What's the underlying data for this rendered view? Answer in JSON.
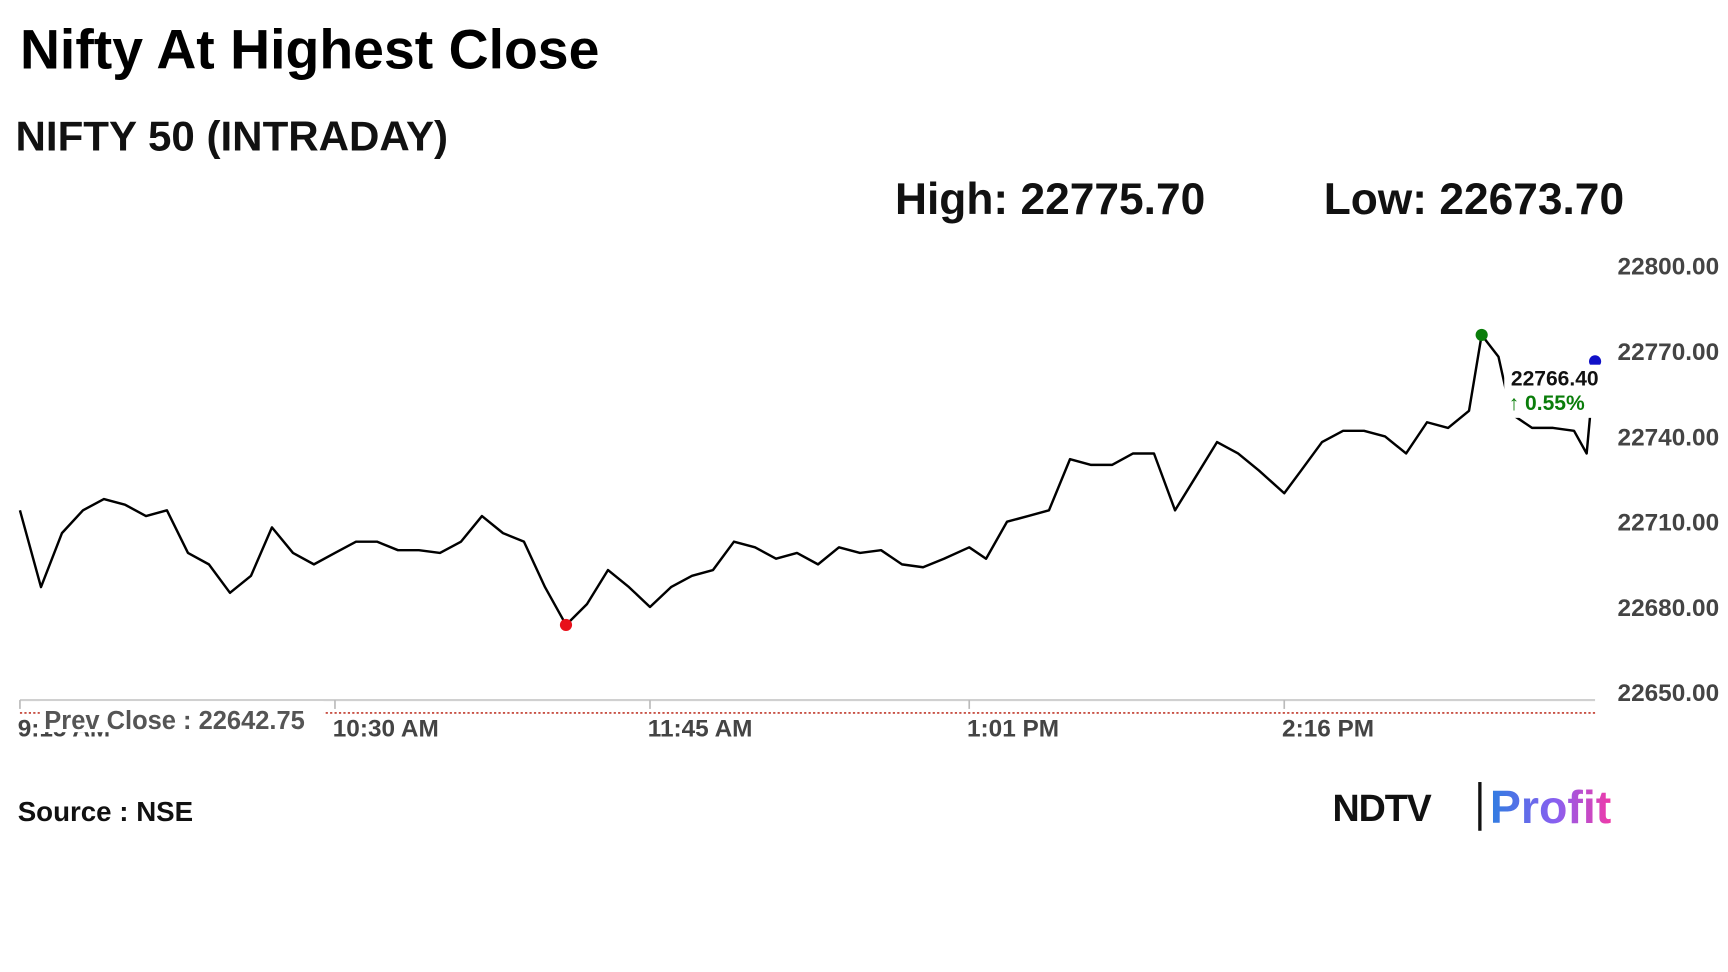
{
  "chart_data": {
    "type": "line",
    "title": "Nifty At Highest Close",
    "subtitle": "NIFTY 50 (INTRADAY)",
    "high_text": "High: 22775.70",
    "low_text": "Low: 22673.70",
    "x": [
      "9:15 AM",
      "9:20 AM",
      "9:25 AM",
      "9:30 AM",
      "9:35 AM",
      "9:40 AM",
      "9:45 AM",
      "9:50 AM",
      "9:55 AM",
      "10:00 AM",
      "10:05 AM",
      "10:10 AM",
      "10:15 AM",
      "10:20 AM",
      "10:25 AM",
      "10:30 AM",
      "10:35 AM",
      "10:40 AM",
      "10:45 AM",
      "10:50 AM",
      "10:55 AM",
      "11:00 AM",
      "11:05 AM",
      "11:10 AM",
      "11:15 AM",
      "11:20 AM",
      "11:25 AM",
      "11:30 AM",
      "11:35 AM",
      "11:40 AM",
      "11:45 AM",
      "11:50 AM",
      "11:55 AM",
      "12:00 PM",
      "12:05 PM",
      "12:10 PM",
      "12:15 PM",
      "12:20 PM",
      "12:25 PM",
      "12:30 PM",
      "12:35 PM",
      "12:40 PM",
      "12:45 PM",
      "12:50 PM",
      "12:55 PM",
      "1:01 PM",
      "1:05 PM",
      "1:10 PM",
      "1:15 PM",
      "1:20 PM",
      "1:25 PM",
      "1:30 PM",
      "1:35 PM",
      "1:40 PM",
      "1:45 PM",
      "1:50 PM",
      "1:55 PM",
      "2:00 PM",
      "2:05 PM",
      "2:10 PM",
      "2:16 PM",
      "2:20 PM",
      "2:25 PM",
      "2:30 PM",
      "2:35 PM",
      "2:40 PM",
      "2:45 PM",
      "2:50 PM",
      "2:55 PM",
      "3:00 PM",
      "3:03 PM",
      "3:07 PM",
      "3:10 PM",
      "3:15 PM",
      "3:20 PM",
      "3:25 PM",
      "3:28 PM",
      "3:30 PM"
    ],
    "series": [
      {
        "name": "NIFTY 50",
        "color": "#000000",
        "values": [
          22714,
          22687,
          22706,
          22714,
          22718,
          22716,
          22712,
          22714,
          22699,
          22695,
          22685,
          22691,
          22708,
          22699,
          22695,
          22699,
          22703,
          22703,
          22700,
          22700,
          22699,
          22703,
          22712,
          22706,
          22703,
          22687,
          22673.7,
          22681,
          22693,
          22687,
          22680,
          22687,
          22691,
          22693,
          22703,
          22701,
          22697,
          22699,
          22695,
          22701,
          22699,
          22700,
          22695,
          22694,
          22697,
          22701,
          22697,
          22710,
          22712,
          22714,
          22732,
          22730,
          22730,
          22734,
          22734,
          22714,
          22726,
          22738,
          22734,
          22728,
          22720,
          22728,
          22738,
          22742,
          22742,
          22740,
          22734,
          22745,
          22743,
          22749,
          22775.7,
          22768,
          22748,
          22743,
          22743,
          22742,
          22734,
          22766.4
        ]
      }
    ],
    "xlim": [
      "9:15 AM",
      "3:30 PM"
    ],
    "xticks": [
      "9:15 AM",
      "10:30 AM",
      "11:45 AM",
      "1:01 PM",
      "2:16 PM"
    ],
    "ylim": [
      22650,
      22800
    ],
    "yticks": [
      {
        "value": 22650,
        "label": "22650.00"
      },
      {
        "value": 22680,
        "label": "22680.00"
      },
      {
        "value": 22710,
        "label": "22710.00"
      },
      {
        "value": 22740,
        "label": "22740.00"
      },
      {
        "value": 22770,
        "label": "22770.00"
      },
      {
        "value": 22800,
        "label": "22800.00"
      }
    ],
    "prev_close": 22642.75,
    "prev_close_label": "Prev Close : 22642.75",
    "last_label": "22766.40",
    "change_label": "↑ 0.55%",
    "low_color": "#e8101a",
    "high_color": "#0a7d0a",
    "last_color": "#1010c8",
    "source": "Source : NSE",
    "logo_left": "NDTV",
    "logo_right": "Profit"
  }
}
